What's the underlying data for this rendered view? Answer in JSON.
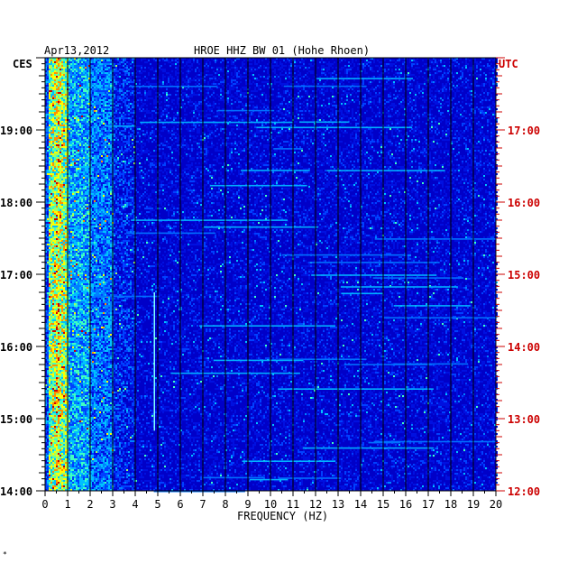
{
  "chart_data": {
    "type": "heatmap",
    "date": "Apr13,2012",
    "title": "HROE HHZ BW 01 (Hohe Rhoen)",
    "left_timezone": "CES",
    "right_timezone": "UTC",
    "xlabel": "FREQUENCY (HZ)",
    "xlim": [
      0,
      20
    ],
    "x_ticks": [
      "0",
      "1",
      "2",
      "3",
      "4",
      "5",
      "6",
      "7",
      "8",
      "9",
      "10",
      "11",
      "12",
      "13",
      "14",
      "15",
      "16",
      "17",
      "18",
      "19",
      "20"
    ],
    "left_time_labels": [
      "19:00",
      "18:00",
      "17:00",
      "16:00",
      "15:00",
      "14:00"
    ],
    "right_time_labels": [
      "17:00",
      "16:00",
      "15:00",
      "14:00",
      "13:00",
      "12:00"
    ],
    "time_range_ces": [
      "14:00",
      "20:00"
    ],
    "grid": true,
    "colors": {
      "background": "#0000c8",
      "title_text": "#000000",
      "utc_text": "#cc0000",
      "gridline": "#000000",
      "low": "#0000c8",
      "medium": "#00c8ff",
      "high": "#ffff00",
      "peak": "#cc0000"
    },
    "features": [
      {
        "description": "persistent strong low-frequency band",
        "freq_range_hz": [
          0.2,
          1.0
        ],
        "intensity": "high"
      },
      {
        "description": "moderate band",
        "freq_range_hz": [
          1.0,
          3.0
        ],
        "intensity": "medium"
      },
      {
        "description": "narrow vertical line",
        "freq_hz": 4.85,
        "time_range_ces": [
          "14:50",
          "16:45"
        ],
        "intensity": "medium"
      }
    ]
  },
  "footer_mark": "*"
}
